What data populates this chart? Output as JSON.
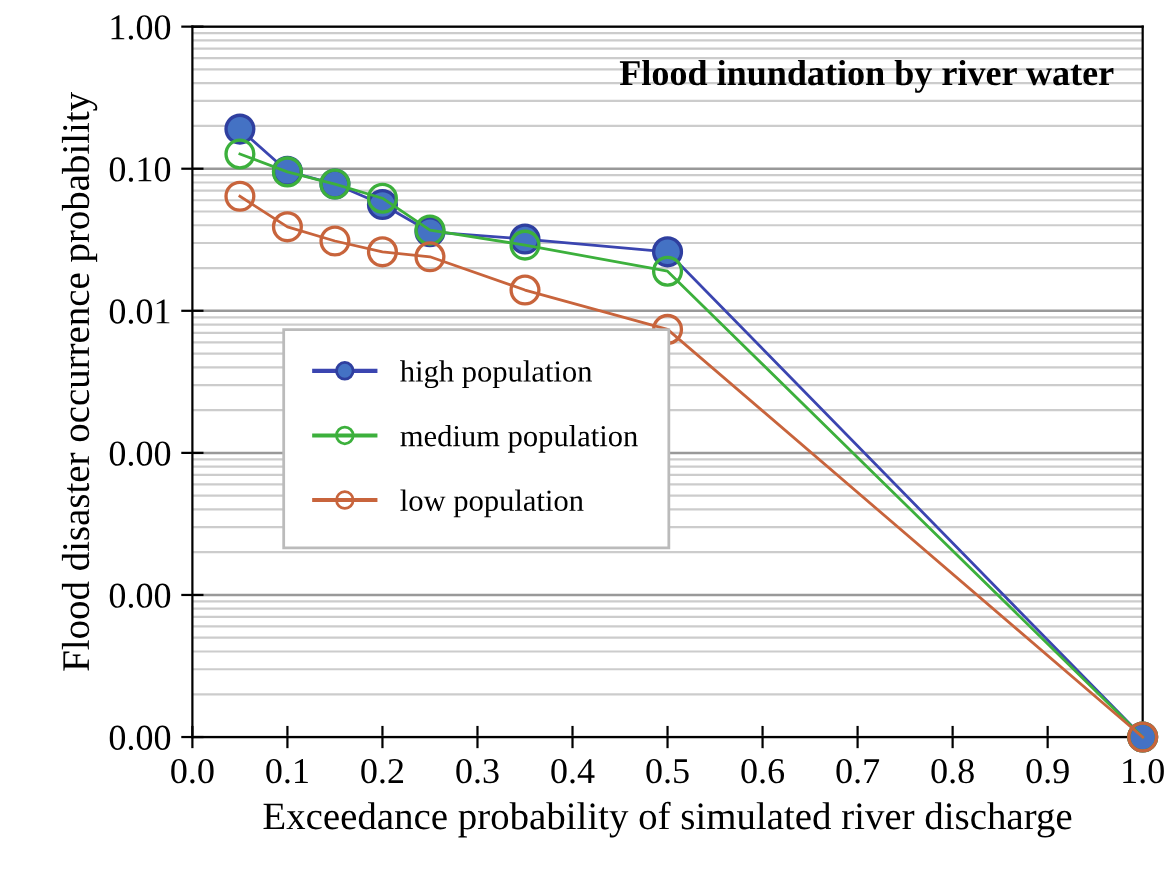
{
  "chart_data": {
    "type": "line",
    "title": "Flood inundation by river water",
    "xlabel": "Exceedance probability of simulated river discharge",
    "ylabel": "Flood disaster occurrence probability",
    "x": [
      0.05,
      0.1,
      0.15,
      0.2,
      0.25,
      0.35,
      0.5,
      1.0
    ],
    "series": [
      {
        "name": "high population",
        "color": "#4472c4",
        "values": [
          0.19,
          0.096,
          0.078,
          0.056,
          0.036,
          0.032,
          0.026,
          1e-05
        ]
      },
      {
        "name": "medium population",
        "color": "#3cb03c",
        "values": [
          0.127,
          0.095,
          0.078,
          0.062,
          0.037,
          0.029,
          0.019,
          1e-05
        ]
      },
      {
        "name": "low population",
        "color": "#c8643c",
        "values": [
          0.064,
          0.039,
          0.031,
          0.026,
          0.024,
          0.014,
          0.0074,
          1e-05
        ]
      }
    ],
    "log": "y",
    "xlim": [
      0.0,
      1.0
    ],
    "xticks": [
      {
        "value": 0,
        "label": "0.0"
      },
      0.1,
      0.2,
      0.3,
      0.4,
      0.5,
      0.6,
      0.7,
      0.8,
      0.9,
      {
        "value": 1,
        "label": "1.0"
      }
    ],
    "ylim": [
      1e-05,
      1.0
    ],
    "yticks": [
      {
        "value": 1e-05,
        "label": "0.00"
      },
      {
        "value": 0.0001,
        "label": "0.00"
      },
      {
        "value": 0.001,
        "label": "0.00"
      },
      {
        "value": 0.01,
        "label": "0.01"
      },
      {
        "value": 0.1,
        "label": "0.10"
      },
      {
        "value": 1.0,
        "label": "1.00"
      }
    ],
    "grid": "y",
    "legend": "center",
    "marker": "circle",
    "line_style": "solid"
  }
}
